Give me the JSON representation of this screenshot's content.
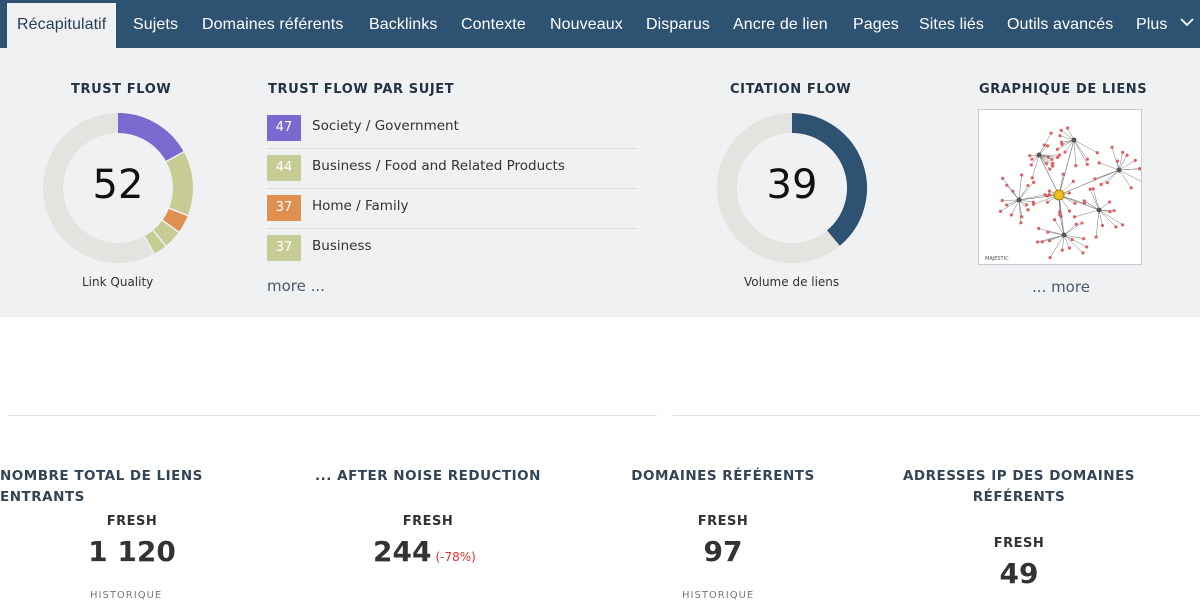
{
  "nav": {
    "tabs": [
      "Récapitulatif",
      "Sujets",
      "Domaines référents",
      "Backlinks",
      "Contexte",
      "Nouveaux",
      "Disparus",
      "Ancre de lien",
      "Pages",
      "Sites liés",
      "Outils avancés",
      "Plus"
    ],
    "active_index": 0
  },
  "trust_flow": {
    "heading": "TRUST FLOW",
    "value": "52",
    "label": "Link Quality",
    "segments": [
      {
        "value": 17,
        "color": "#7b69cf"
      },
      {
        "value": 14,
        "color": "#c6cc94"
      },
      {
        "value": 4,
        "color": "#df9050"
      },
      {
        "value": 4,
        "color": "#c6cc94"
      },
      {
        "value": 3,
        "color": "#c6cc94"
      }
    ],
    "track_color": "#e3e3e0"
  },
  "topics": {
    "heading": "TRUST FLOW PAR SUJET",
    "items": [
      {
        "score": "47",
        "name": "Society / Government",
        "color": "#7b69cf"
      },
      {
        "score": "44",
        "name": "Business / Food and Related Products",
        "color": "#c6cc94"
      },
      {
        "score": "37",
        "name": "Home / Family",
        "color": "#df9050"
      },
      {
        "score": "37",
        "name": "Business",
        "color": "#c6cc94"
      }
    ],
    "more": "more ..."
  },
  "citation_flow": {
    "heading": "CITATION FLOW",
    "value": "39",
    "label": "Volume de liens",
    "fraction": 0.39,
    "color": "#2d5272",
    "track_color": "#e3e3e0"
  },
  "link_graph": {
    "heading": "GRAPHIQUE DE LIENS",
    "more": "... more",
    "logo_text": "MAJESTIC"
  },
  "stats": [
    {
      "title": "NOMBRE TOTAL DE LIENS ENTRANTS",
      "fresh_label": "FRESH",
      "value": "1 120",
      "delta": ""
    },
    {
      "title": "... AFTER NOISE REDUCTION",
      "fresh_label": "FRESH",
      "value": "244",
      "delta": "(-78%)"
    },
    {
      "title": "DOMAINES RÉFÉRENTS",
      "fresh_label": "FRESH",
      "value": "97",
      "delta": ""
    },
    {
      "title": "ADRESSES IP DES DOMAINES RÉFÉRENTS",
      "fresh_label": "FRESH",
      "value": "49",
      "delta": ""
    }
  ]
}
